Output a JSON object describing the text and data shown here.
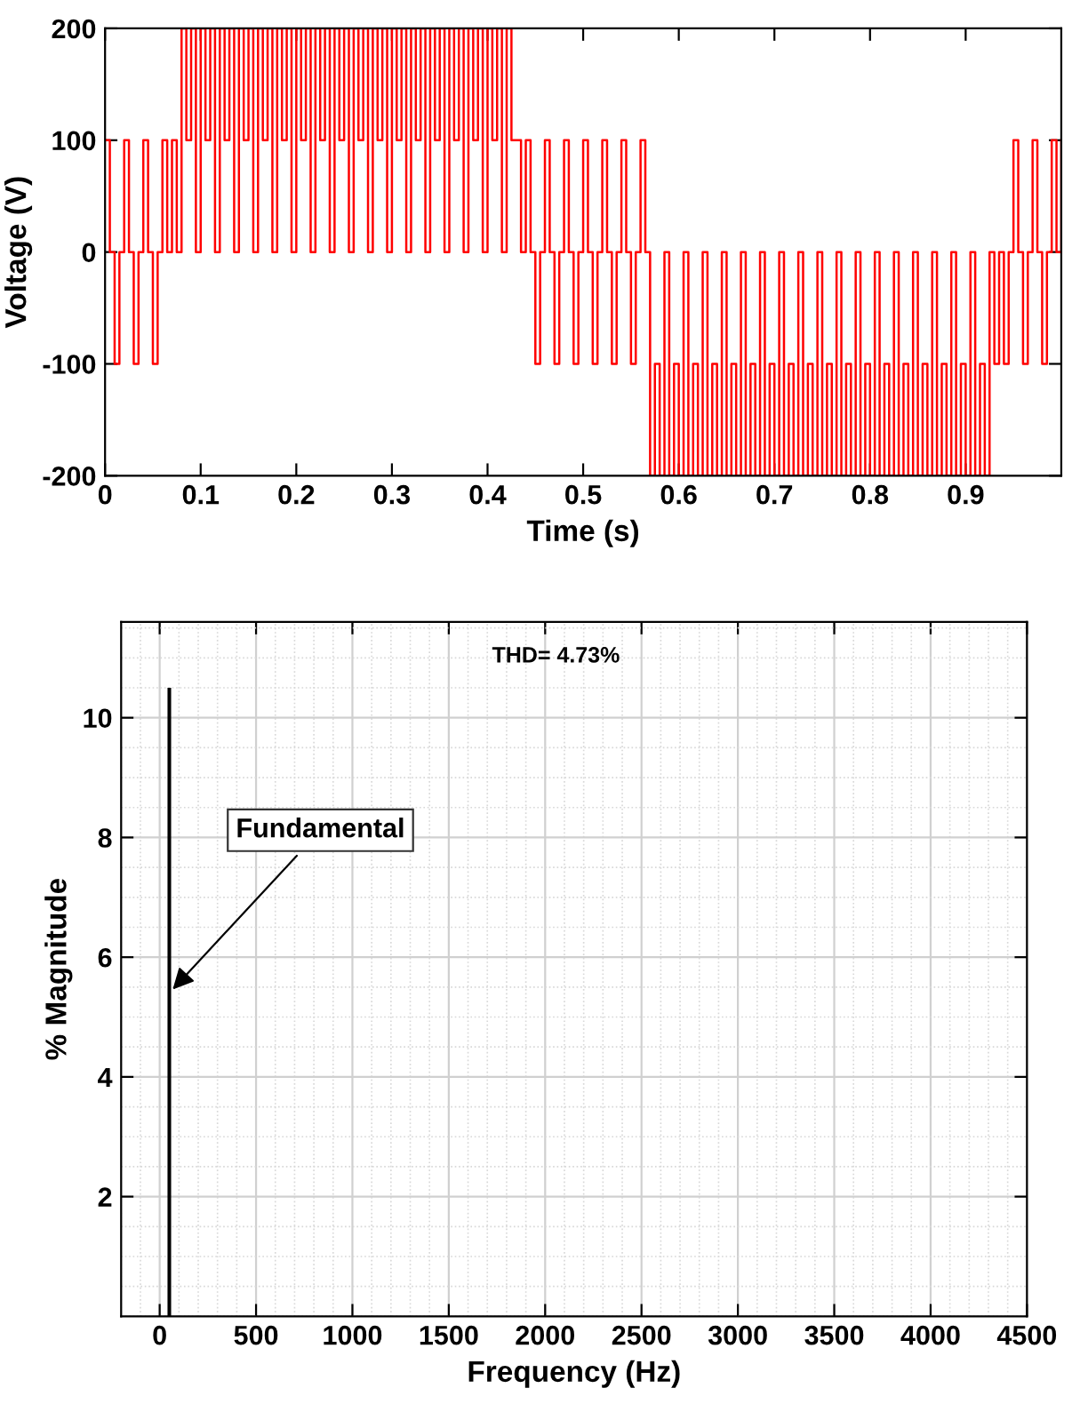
{
  "chart_data": [
    {
      "type": "step",
      "xlabel": "Time (s)",
      "ylabel": "Voltage (V)",
      "xlim": [
        0,
        1
      ],
      "ylim": [
        -200,
        200
      ],
      "xticks": [
        0,
        0.1,
        0.2,
        0.3,
        0.4,
        0.5,
        0.6,
        0.7,
        0.8,
        0.9
      ],
      "yticks": [
        -200,
        -100,
        0,
        100,
        200
      ],
      "grid": false,
      "series": [
        {
          "color": "#ff0000",
          "x": [
            0,
            0.005,
            0.01,
            0.015,
            0.02,
            0.025,
            0.03,
            0.035,
            0.04,
            0.045,
            0.05,
            0.055,
            0.06,
            0.065,
            0.07,
            0.075,
            0.08,
            0.085,
            0.09,
            0.095,
            0.1,
            0.105,
            0.11,
            0.115,
            0.12,
            0.125,
            0.13,
            0.135,
            0.14,
            0.145,
            0.15,
            0.155,
            0.16,
            0.165,
            0.17,
            0.175,
            0.18,
            0.185,
            0.19,
            0.195,
            0.2,
            0.205,
            0.21,
            0.215,
            0.22,
            0.225,
            0.23,
            0.235,
            0.24,
            0.245,
            0.25,
            0.255,
            0.26,
            0.265,
            0.27,
            0.275,
            0.28,
            0.285,
            0.29,
            0.295,
            0.3,
            0.305,
            0.31,
            0.315,
            0.32,
            0.325,
            0.33,
            0.335,
            0.34,
            0.345,
            0.35,
            0.355,
            0.36,
            0.365,
            0.37,
            0.375,
            0.38,
            0.385,
            0.39,
            0.395,
            0.4,
            0.405,
            0.41,
            0.415,
            0.42,
            0.425,
            0.43,
            0.435,
            0.44,
            0.445,
            0.45,
            0.455,
            0.46,
            0.465,
            0.47,
            0.475,
            0.48,
            0.485,
            0.49,
            0.495,
            0.5,
            0.505,
            0.51,
            0.515,
            0.52,
            0.525,
            0.53,
            0.535,
            0.54,
            0.545,
            0.55,
            0.555,
            0.56,
            0.565,
            0.57,
            0.575,
            0.58,
            0.585,
            0.59,
            0.595,
            0.6,
            0.605,
            0.61,
            0.615,
            0.62,
            0.625,
            0.63,
            0.635,
            0.64,
            0.645,
            0.65,
            0.655,
            0.66,
            0.665,
            0.67,
            0.675,
            0.68,
            0.685,
            0.69,
            0.695,
            0.7,
            0.705,
            0.71,
            0.715,
            0.72,
            0.725,
            0.73,
            0.735,
            0.74,
            0.745,
            0.75,
            0.755,
            0.76,
            0.765,
            0.77,
            0.775,
            0.78,
            0.785,
            0.79,
            0.795,
            0.8,
            0.805,
            0.81,
            0.815,
            0.82,
            0.825,
            0.83,
            0.835,
            0.84,
            0.845,
            0.85,
            0.855,
            0.86,
            0.865,
            0.87,
            0.875,
            0.88,
            0.885,
            0.89,
            0.895,
            0.9,
            0.905,
            0.91,
            0.915,
            0.92,
            0.925,
            0.93,
            0.935,
            0.94,
            0.945,
            0.95,
            0.955,
            0.96,
            0.965,
            0.97,
            0.975,
            0.98,
            0.985,
            0.99,
            0.995,
            1
          ],
          "values": [
            100,
            0,
            -100,
            0,
            100,
            0,
            -100,
            0,
            100,
            0,
            -100,
            0,
            100,
            0,
            100,
            0,
            200,
            100,
            200,
            0,
            200,
            100,
            200,
            0,
            200,
            100,
            200,
            0,
            200,
            100,
            200,
            0,
            200,
            100,
            200,
            0,
            200,
            100,
            200,
            0,
            200,
            100,
            200,
            0,
            200,
            100,
            200,
            0,
            200,
            100,
            200,
            0,
            200,
            100,
            200,
            0,
            200,
            100,
            200,
            0,
            200,
            100,
            200,
            0,
            200,
            100,
            200,
            0,
            200,
            100,
            200,
            0,
            200,
            100,
            200,
            0,
            200,
            100,
            200,
            0,
            200,
            100,
            200,
            0,
            200,
            100,
            100,
            0,
            100,
            0,
            -100,
            0,
            100,
            0,
            -100,
            0,
            100,
            0,
            -100,
            0,
            100,
            0,
            -100,
            0,
            100,
            0,
            -100,
            0,
            100,
            0,
            -100,
            0,
            100,
            0,
            -200,
            -100,
            -200,
            0,
            -200,
            -100,
            -200,
            0,
            -200,
            -100,
            -200,
            0,
            -200,
            -100,
            -200,
            0,
            -200,
            -100,
            -200,
            0,
            -200,
            -100,
            -200,
            0,
            -200,
            -100,
            -200,
            0,
            -200,
            -100,
            -200,
            0,
            -200,
            -100,
            -200,
            0,
            -200,
            -100,
            -200,
            0,
            -200,
            -100,
            -200,
            0,
            -200,
            -100,
            -200,
            0,
            -200,
            -100,
            -200,
            0,
            -200,
            -100,
            -200,
            0,
            -200,
            -100,
            -200,
            0,
            -200,
            -100,
            -200,
            0,
            -200,
            -100,
            -200,
            0,
            -200,
            -100,
            -200,
            0,
            -100,
            0,
            -100,
            0,
            100,
            0,
            -100,
            0,
            100,
            0,
            -100,
            0,
            100,
            0,
            100
          ]
        }
      ]
    },
    {
      "type": "bar",
      "xlabel": "Frequency (Hz)",
      "ylabel": "% Magnitude",
      "xlim": [
        -200,
        4500
      ],
      "ylim": [
        0,
        11.6
      ],
      "xticks": [
        0,
        500,
        1000,
        1500,
        2000,
        2500,
        3000,
        3500,
        4000,
        4500
      ],
      "yticks": [
        2,
        4,
        6,
        8,
        10
      ],
      "grid": true,
      "x": [
        50
      ],
      "values": [
        10.5
      ],
      "color": "#000000",
      "annotations": [
        "THD= 4.73%",
        {
          "text": "Fundamental",
          "x": 50,
          "y": 5.4
        }
      ]
    }
  ]
}
